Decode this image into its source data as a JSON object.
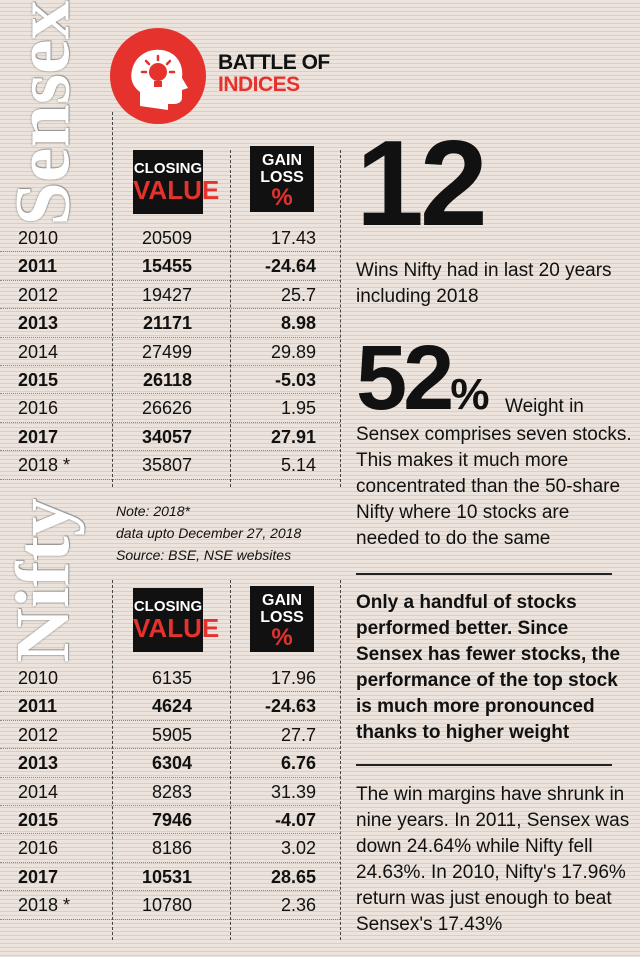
{
  "header": {
    "title_line1": "BATTLE OF",
    "title_line2": "INDICES",
    "icon": "lightbulb-head-icon",
    "accent_color": "#e5322d"
  },
  "sensex": {
    "section_title": "Sensex",
    "col_closing_l1": "CLOSING",
    "col_closing_l2": "VALUE",
    "col_gain_l1": "GAIN",
    "col_gain_l2": "LOSS",
    "col_gain_l3": "%",
    "rows": [
      {
        "year": "2010",
        "closing": "20509",
        "gain": "17.43",
        "bold": false
      },
      {
        "year": "2011",
        "closing": "15455",
        "gain": "-24.64",
        "bold": true
      },
      {
        "year": "2012",
        "closing": "19427",
        "gain": "25.7",
        "bold": false
      },
      {
        "year": "2013",
        "closing": "21171",
        "gain": "8.98",
        "bold": true
      },
      {
        "year": "2014",
        "closing": "27499",
        "gain": "29.89",
        "bold": false
      },
      {
        "year": "2015",
        "closing": "26118",
        "gain": "-5.03",
        "bold": true
      },
      {
        "year": "2016",
        "closing": "26626",
        "gain": "1.95",
        "bold": false
      },
      {
        "year": "2017",
        "closing": "34057",
        "gain": "27.91",
        "bold": true
      },
      {
        "year": "2018 *",
        "closing": "35807",
        "gain": "5.14",
        "bold": false
      }
    ]
  },
  "note": {
    "line1": "Note: 2018*",
    "line2": "data upto December 27, 2018",
    "line3": "Source: BSE, NSE websites"
  },
  "nifty": {
    "section_title": "Nifty",
    "col_closing_l1": "CLOSING",
    "col_closing_l2": "VALUE",
    "col_gain_l1": "GAIN",
    "col_gain_l2": "LOSS",
    "col_gain_l3": "%",
    "rows": [
      {
        "year": "2010",
        "closing": "6135",
        "gain": "17.96",
        "bold": false
      },
      {
        "year": "2011",
        "closing": "4624",
        "gain": "-24.63",
        "bold": true
      },
      {
        "year": "2012",
        "closing": "5905",
        "gain": "27.7",
        "bold": false
      },
      {
        "year": "2013",
        "closing": "6304",
        "gain": "6.76",
        "bold": true
      },
      {
        "year": "2014",
        "closing": "8283",
        "gain": "31.39",
        "bold": false
      },
      {
        "year": "2015",
        "closing": "7946",
        "gain": "-4.07",
        "bold": true
      },
      {
        "year": "2016",
        "closing": "8186",
        "gain": "3.02",
        "bold": false
      },
      {
        "year": "2017",
        "closing": "10531",
        "gain": "28.65",
        "bold": true
      },
      {
        "year": "2018 *",
        "closing": "10780",
        "gain": "2.36",
        "bold": false
      }
    ]
  },
  "stats": {
    "stat1_number": "12",
    "stat1_text": "Wins Nifty had in last 20 years including 2018",
    "stat2_number": "52",
    "stat2_unit": "%",
    "stat2_inline": "Weight in",
    "stat2_text": "Sensex comprises seven stocks. This makes it much more concentrated than the 50-share Nifty where 10 stocks are needed to do the same"
  },
  "insight": "Only a handful of stocks performed better. Since Sensex has fewer stocks, the performance of the top stock is much more pronounced thanks to higher weight",
  "paragraph": "The win margins have shrunk in nine years. In 2011, Sensex was down 24.64% while Nifty fell 24.63%. In 2010, Nifty's 17.96% return was just enough to beat Sensex's 17.43%"
}
